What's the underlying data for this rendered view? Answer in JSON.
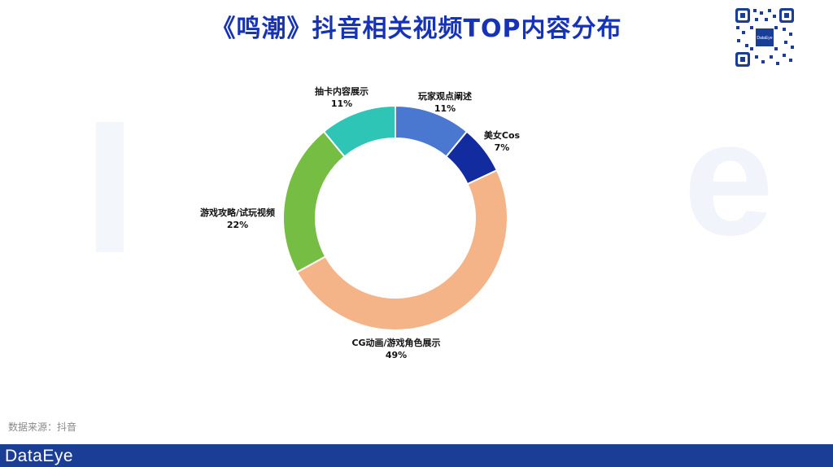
{
  "title": "《鸣潮》抖音相关视频TOP内容分布",
  "source_note": "数据来源：抖音",
  "brand": "DataEye",
  "qr_center_text": "DataEye",
  "chart_data": {
    "type": "pie",
    "variant": "donut",
    "start": "top",
    "direction": "clockwise",
    "title": "",
    "slices": [
      {
        "label": "玩家观点阐述",
        "value": 11,
        "value_label": "11%",
        "color": "#4a78d1"
      },
      {
        "label": "美女Cos",
        "value": 7,
        "value_label": "7%",
        "color": "#122b9e"
      },
      {
        "label": "CG动画/游戏角色展示",
        "value": 49,
        "value_label": "49%",
        "color": "#f4b488"
      },
      {
        "label": "游戏攻略/试玩视频",
        "value": 22,
        "value_label": "22%",
        "color": "#76bd43"
      },
      {
        "label": "抽卡内容展示",
        "value": 11,
        "value_label": "11%",
        "color": "#2ec4b6"
      }
    ]
  }
}
